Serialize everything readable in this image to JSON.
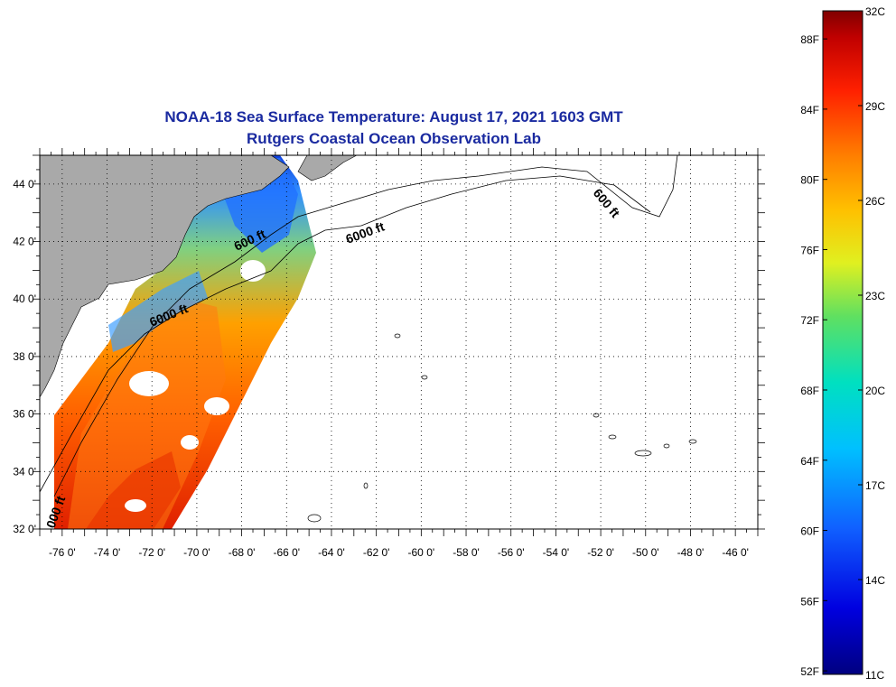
{
  "title": {
    "line1": "NOAA-18 Sea Surface Temperature:  August 17, 2021 1603 GMT",
    "line2": "Rutgers Coastal Ocean Observation Lab"
  },
  "map": {
    "lon_range": [
      -77,
      -45
    ],
    "lat_range": [
      32,
      45
    ],
    "lat_ticks": [
      {
        "value": 32,
        "label": "32 0'"
      },
      {
        "value": 34,
        "label": "34 0'"
      },
      {
        "value": 36,
        "label": "36 0'"
      },
      {
        "value": 38,
        "label": "38 0'"
      },
      {
        "value": 40,
        "label": "40 0'"
      },
      {
        "value": 42,
        "label": "42 0'"
      },
      {
        "value": 44,
        "label": "44 0'"
      }
    ],
    "lon_ticks": [
      {
        "value": -76,
        "label": "-76 0'"
      },
      {
        "value": -74,
        "label": "-74 0'"
      },
      {
        "value": -72,
        "label": "-72 0'"
      },
      {
        "value": -70,
        "label": "-70 0'"
      },
      {
        "value": -68,
        "label": "-68 0'"
      },
      {
        "value": -66,
        "label": "-66 0'"
      },
      {
        "value": -64,
        "label": "-64 0'"
      },
      {
        "value": -62,
        "label": "-62 0'"
      },
      {
        "value": -60,
        "label": "-60 0'"
      },
      {
        "value": -58,
        "label": "-58 0'"
      },
      {
        "value": -56,
        "label": "-56 0'"
      },
      {
        "value": -54,
        "label": "-54 0'"
      },
      {
        "value": -52,
        "label": "-52 0'"
      },
      {
        "value": -50,
        "label": "-50 0'"
      },
      {
        "value": -48,
        "label": "-48 0'"
      },
      {
        "value": -46,
        "label": "-46 0'"
      }
    ],
    "contour_labels": [
      "600 ft",
      "600 ft",
      "6000 ft",
      "6000 ft",
      "000 ft"
    ],
    "colors": {
      "land": "#a9a9a9",
      "cloud": "#ffffff",
      "grid": "#000000"
    }
  },
  "colorbar": {
    "range_c": [
      11,
      32
    ],
    "celsius_labels": [
      {
        "value": 32,
        "label": "32C"
      },
      {
        "value": 29,
        "label": "29C"
      },
      {
        "value": 26,
        "label": "26C"
      },
      {
        "value": 23,
        "label": "23C"
      },
      {
        "value": 20,
        "label": "20C"
      },
      {
        "value": 17,
        "label": "17C"
      },
      {
        "value": 14,
        "label": "14C"
      },
      {
        "value": 11,
        "label": "11C"
      }
    ],
    "fahrenheit_labels": [
      {
        "value": 88,
        "label": "88F"
      },
      {
        "value": 84,
        "label": "84F"
      },
      {
        "value": 80,
        "label": "80F"
      },
      {
        "value": 76,
        "label": "76F"
      },
      {
        "value": 72,
        "label": "72F"
      },
      {
        "value": 68,
        "label": "68F"
      },
      {
        "value": 64,
        "label": "64F"
      },
      {
        "value": 60,
        "label": "60F"
      },
      {
        "value": 56,
        "label": "56F"
      },
      {
        "value": 52,
        "label": "52F"
      }
    ]
  }
}
